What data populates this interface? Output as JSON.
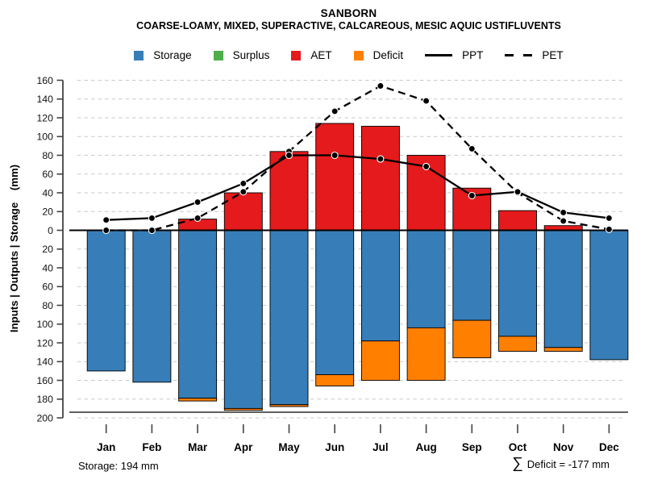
{
  "header": {
    "title": "SANBORN",
    "subtitle": "COARSE-LOAMY, MIXED, SUPERACTIVE, CALCAREOUS, MESIC AQUIC USTIFLUVENTS"
  },
  "legend": {
    "items": [
      {
        "label": "Storage",
        "swatch": "square",
        "color": "#377EB8"
      },
      {
        "label": "Surplus",
        "swatch": "square",
        "color": "#4DAF4A"
      },
      {
        "label": "AET",
        "swatch": "square",
        "color": "#E41A1C"
      },
      {
        "label": "Deficit",
        "swatch": "square",
        "color": "#FF7F00"
      },
      {
        "label": "PPT",
        "swatch": "solid-line",
        "color": "#000000"
      },
      {
        "label": "PET",
        "swatch": "dashed-line",
        "color": "#000000"
      }
    ]
  },
  "chart_data": {
    "type": "bar",
    "title": "SANBORN",
    "subtitle": "COARSE-LOAMY, MIXED, SUPERACTIVE, CALCAREOUS, MESIC AQUIC USTIFLUVENTS",
    "categories": [
      "Jan",
      "Feb",
      "Mar",
      "Apr",
      "May",
      "Jun",
      "Jul",
      "Aug",
      "Sep",
      "Oct",
      "Nov",
      "Dec"
    ],
    "series": [
      {
        "name": "Storage",
        "type": "bar",
        "direction": "down",
        "color": "#377EB8",
        "values": [
          150,
          162,
          179,
          190,
          186,
          154,
          118,
          104,
          96,
          113,
          125,
          138
        ]
      },
      {
        "name": "Surplus",
        "type": "bar",
        "direction": "up",
        "color": "#4DAF4A",
        "values": [
          0,
          0,
          0,
          0,
          0,
          0,
          0,
          0,
          0,
          0,
          0,
          0
        ]
      },
      {
        "name": "AET",
        "type": "bar",
        "direction": "up",
        "color": "#E41A1C",
        "values": [
          0,
          0,
          12,
          40,
          84,
          114,
          111,
          80,
          45,
          21,
          5,
          0
        ]
      },
      {
        "name": "Deficit",
        "type": "bar",
        "direction": "down",
        "stacked_below": "Storage",
        "color": "#FF7F00",
        "values": [
          0,
          0,
          3,
          2,
          2,
          12,
          42,
          56,
          40,
          16,
          4,
          0
        ]
      },
      {
        "name": "PPT",
        "type": "line",
        "style": "solid",
        "color": "#000000",
        "values": [
          11,
          13,
          30,
          50,
          80,
          80,
          76,
          68,
          37,
          41,
          19,
          13
        ]
      },
      {
        "name": "PET",
        "type": "line",
        "style": "dashed",
        "color": "#000000",
        "values": [
          0,
          0,
          13,
          41,
          84,
          127,
          154,
          138,
          87,
          40,
          10,
          1
        ]
      }
    ],
    "xlabel": "",
    "ylabel": "Inputs | Outputs | Storage    (mm)",
    "ylim": [
      -200,
      160
    ],
    "ytick_step": 20,
    "ytick_labels_absolute": true,
    "grid": true,
    "legend_position": "top",
    "annotations": {
      "storage_capacity_mm": 194,
      "capacity_line_at": -194,
      "sum_deficit_mm": -177
    }
  },
  "footer": {
    "storage_note": "Storage: 194 mm",
    "deficit_sigma": "∑",
    "deficit_note": "Deficit = -177 mm"
  }
}
